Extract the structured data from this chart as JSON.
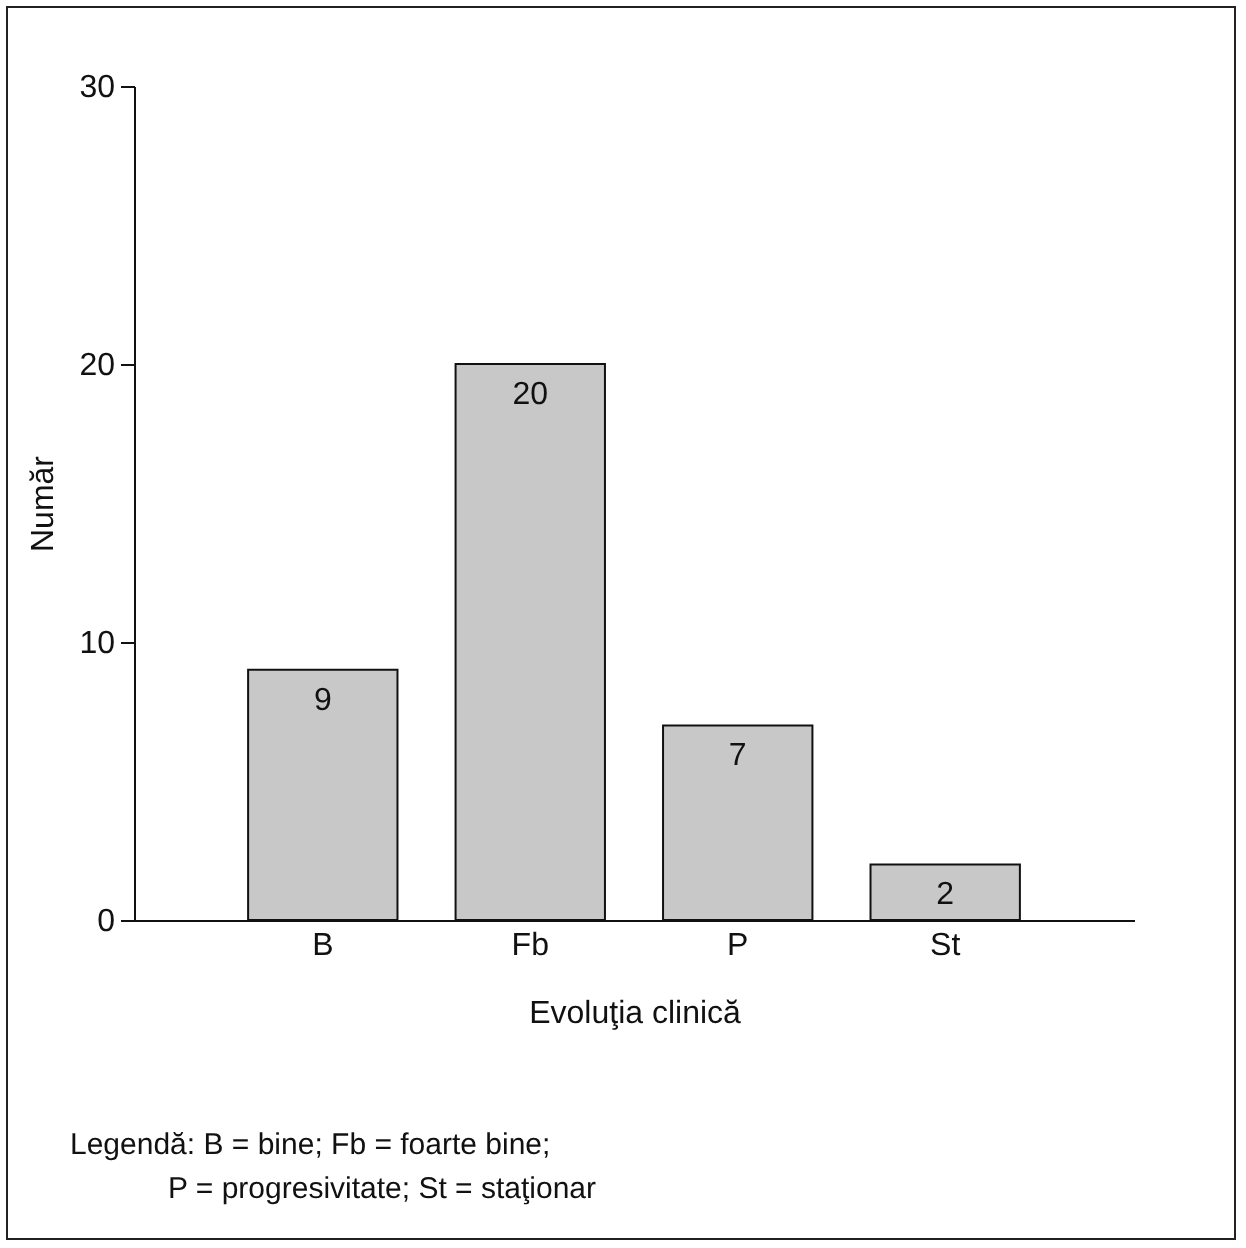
{
  "chart_data": {
    "type": "bar",
    "xlabel": "Evoluţia clinică",
    "ylabel": "Număr",
    "categories": [
      "B",
      "Fb",
      "P",
      "St"
    ],
    "values": [
      9,
      20,
      7,
      2
    ],
    "color": "#c8c8c8",
    "ylim": [
      0,
      30
    ],
    "yticks": [
      0,
      10,
      20,
      30
    ],
    "grid": false,
    "data_labels": true,
    "annotations": [
      "Legendă: B = bine; Fb = foarte bine;",
      "P = progresivitate; St = staţionar"
    ]
  }
}
